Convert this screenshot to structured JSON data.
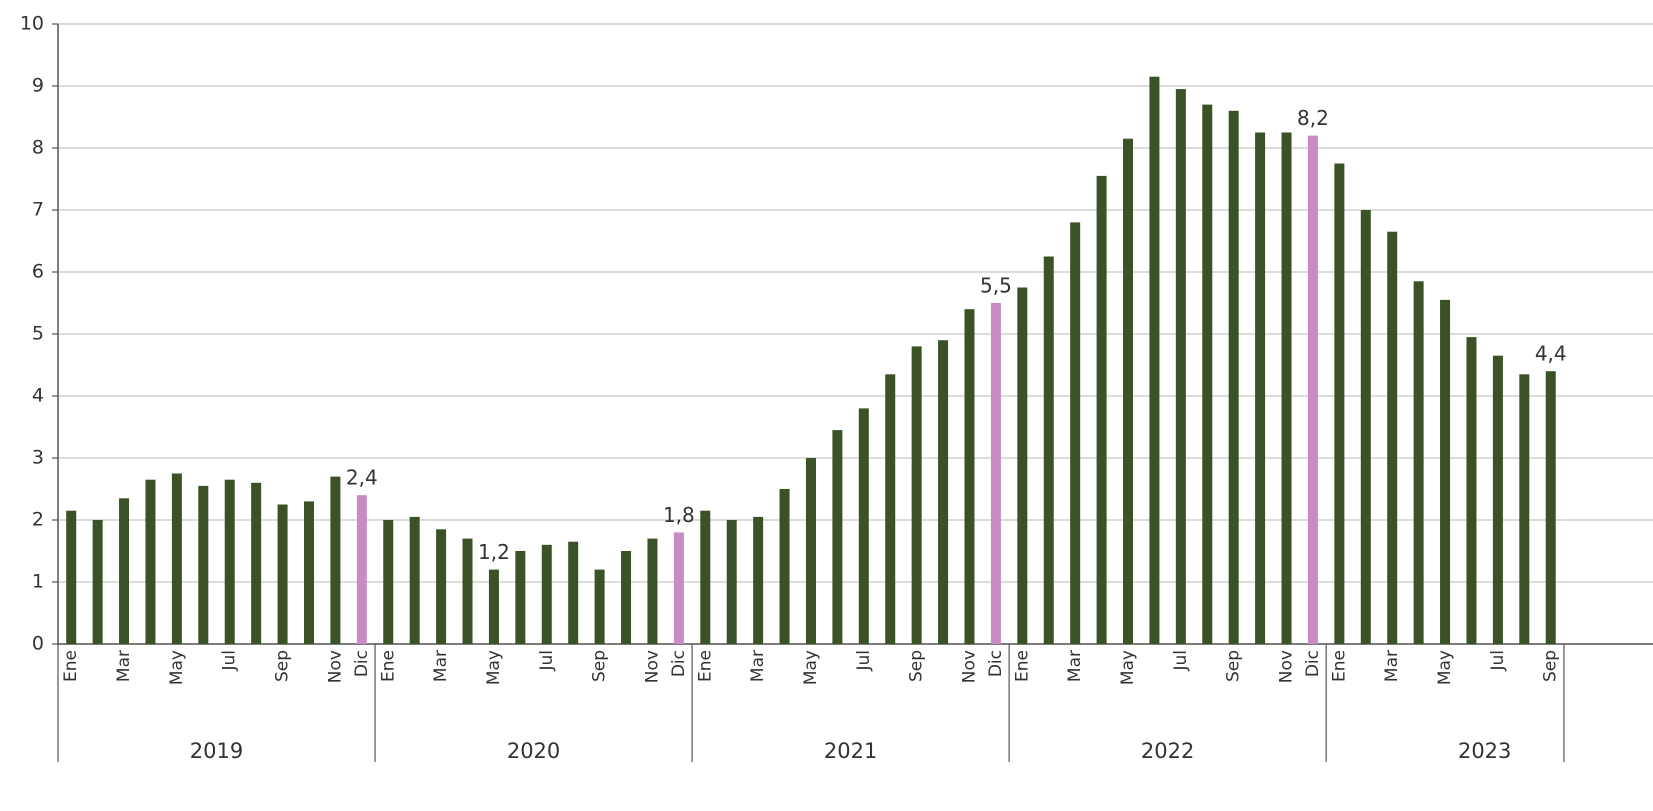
{
  "chart_data": {
    "type": "bar",
    "categories": [
      "Ene",
      null,
      "Mar",
      null,
      "May",
      null,
      "Jul",
      null,
      "Sep",
      null,
      "Nov",
      "Dic",
      "Ene",
      null,
      "Mar",
      null,
      "May",
      null,
      "Jul",
      null,
      "Sep",
      null,
      "Nov",
      "Dic",
      "Ene",
      null,
      "Mar",
      null,
      "May",
      null,
      "Jul",
      null,
      "Sep",
      null,
      "Nov",
      "Dic",
      "Ene",
      null,
      "Mar",
      null,
      "May",
      null,
      "Jul",
      null,
      "Sep",
      null,
      "Nov",
      "Dic",
      "Ene",
      null,
      "Mar",
      null,
      "May",
      null,
      "Jul",
      null,
      "Sep"
    ],
    "groups": [
      "2019",
      "2020",
      "2021",
      "2022",
      "2023"
    ],
    "values": [
      2.15,
      2.0,
      2.35,
      2.65,
      2.75,
      2.55,
      2.65,
      2.6,
      2.25,
      2.3,
      2.7,
      2.4,
      2.0,
      2.05,
      1.85,
      1.7,
      1.2,
      1.5,
      1.6,
      1.65,
      1.2,
      1.5,
      1.7,
      1.8,
      2.15,
      2.0,
      2.05,
      2.5,
      3.0,
      3.45,
      3.8,
      4.35,
      4.8,
      4.9,
      5.4,
      5.5,
      5.75,
      6.25,
      6.8,
      7.55,
      8.15,
      9.15,
      8.95,
      8.7,
      8.6,
      8.25,
      8.25,
      8.2,
      7.75,
      7.0,
      6.65,
      5.85,
      5.55,
      4.95,
      4.65,
      4.35,
      4.4
    ],
    "value_labels": [
      null,
      null,
      null,
      null,
      null,
      null,
      null,
      null,
      null,
      null,
      null,
      "2,4",
      null,
      null,
      null,
      null,
      "1,2",
      null,
      null,
      null,
      null,
      null,
      null,
      "1,8",
      null,
      null,
      null,
      null,
      null,
      null,
      null,
      null,
      null,
      null,
      null,
      "5,5",
      null,
      null,
      null,
      null,
      null,
      null,
      null,
      null,
      null,
      null,
      null,
      "8,2",
      null,
      null,
      null,
      null,
      null,
      null,
      null,
      null,
      "4,4"
    ],
    "colors": [
      "#3a5226",
      "#3a5226",
      "#3a5226",
      "#3a5226",
      "#3a5226",
      "#3a5226",
      "#3a5226",
      "#3a5226",
      "#3a5226",
      "#3a5226",
      "#3a5226",
      "#c98bc6",
      "#3a5226",
      "#3a5226",
      "#3a5226",
      "#3a5226",
      "#3a5226",
      "#3a5226",
      "#3a5226",
      "#3a5226",
      "#3a5226",
      "#3a5226",
      "#3a5226",
      "#c98bc6",
      "#3a5226",
      "#3a5226",
      "#3a5226",
      "#3a5226",
      "#3a5226",
      "#3a5226",
      "#3a5226",
      "#3a5226",
      "#3a5226",
      "#3a5226",
      "#3a5226",
      "#c98bc6",
      "#3a5226",
      "#3a5226",
      "#3a5226",
      "#3a5226",
      "#3a5226",
      "#3a5226",
      "#3a5226",
      "#3a5226",
      "#3a5226",
      "#3a5226",
      "#3a5226",
      "#c98bc6",
      "#3a5226",
      "#3a5226",
      "#3a5226",
      "#3a5226",
      "#3a5226",
      "#3a5226",
      "#3a5226",
      "#3a5226",
      "#3a5226"
    ],
    "ylim": [
      0,
      10
    ],
    "yticks": [
      0,
      1,
      2,
      3,
      4,
      5,
      6,
      7,
      8,
      9,
      10
    ],
    "grid": true
  }
}
